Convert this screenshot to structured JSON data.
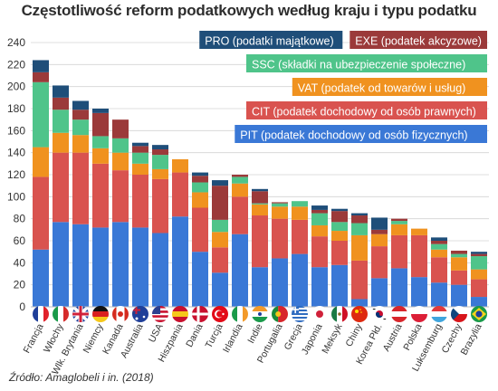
{
  "title": "Częstotliwość reform podatkowych według kraju i typu podatku",
  "source": "Źródło: Amaglobeli i in. (2018)",
  "chart_data": {
    "type": "bar",
    "stacked": true,
    "title": "Częstotliwość reform podatkowych według kraju i typu podatku",
    "xlabel": "",
    "ylabel": "",
    "ylim": [
      0,
      240
    ],
    "yticks": [
      0,
      20,
      40,
      60,
      80,
      100,
      120,
      140,
      160,
      180,
      200,
      220,
      240
    ],
    "grid": true,
    "legend_position": "top-right",
    "categories": [
      "Francja",
      "Włochy",
      "Wlk. Brytania",
      "Niemcy",
      "Kanada",
      "Australia",
      "USA",
      "Hiszpania",
      "Dania",
      "Turcja",
      "Irlandia",
      "Indie",
      "Portugalia",
      "Grecja",
      "Japonia",
      "Meksyk",
      "Chiny",
      "Korea Płd.",
      "Austria",
      "Polska",
      "Luksemburg",
      "Czechy",
      "Brazylia"
    ],
    "flags": [
      "fr",
      "it",
      "gb",
      "de",
      "ca",
      "au",
      "us",
      "es",
      "dk",
      "tr",
      "ie",
      "in",
      "pt",
      "gr",
      "jp",
      "mx",
      "cn",
      "kr",
      "at",
      "pl",
      "lu",
      "cz",
      "br"
    ],
    "series": [
      {
        "name": "PIT (podatek dochodowy od osób fizycznych)",
        "color": "#3a78d6",
        "values": [
          52,
          77,
          75,
          72,
          77,
          72,
          67,
          82,
          50,
          31,
          66,
          36,
          44,
          48,
          36,
          38,
          7,
          26,
          35,
          27,
          22,
          20,
          9
        ]
      },
      {
        "name": "CIT (podatek dochodowy od osób prawnych)",
        "color": "#d9534f",
        "values": [
          66,
          63,
          65,
          58,
          47,
          48,
          49,
          40,
          40,
          23,
          34,
          47,
          36,
          31,
          28,
          22,
          35,
          29,
          30,
          38,
          23,
          13,
          16
        ]
      },
      {
        "name": "VAT (podatek od towarów i usług)",
        "color": "#f0921f",
        "values": [
          27,
          18,
          16,
          14,
          16,
          10,
          9,
          12,
          14,
          14,
          12,
          10,
          11,
          12,
          10,
          9,
          23,
          11,
          10,
          6,
          7,
          12,
          9
        ]
      },
      {
        "name": "SSC (składki na ubezpieczenie społeczne)",
        "color": "#4fc48a",
        "values": [
          59,
          21,
          14,
          11,
          13,
          10,
          13,
          0,
          9,
          11,
          6,
          1,
          3,
          5,
          11,
          8,
          11,
          0,
          3,
          0,
          5,
          3,
          12
        ]
      },
      {
        "name": "EXE (podatek akcyzowe)",
        "color": "#9b3a3a",
        "values": [
          9,
          11,
          9,
          21,
          17,
          6,
          5,
          0,
          6,
          31,
          2,
          11,
          1,
          0,
          3,
          10,
          7,
          4,
          2,
          0,
          3,
          3,
          2
        ]
      },
      {
        "name": "PRO (podatki majątkowe)",
        "color": "#1f4e79",
        "values": [
          11,
          11,
          8,
          4,
          0,
          3,
          4,
          0,
          3,
          5,
          0,
          2,
          0,
          0,
          4,
          2,
          2,
          11,
          0,
          0,
          3,
          0,
          2
        ]
      }
    ]
  }
}
